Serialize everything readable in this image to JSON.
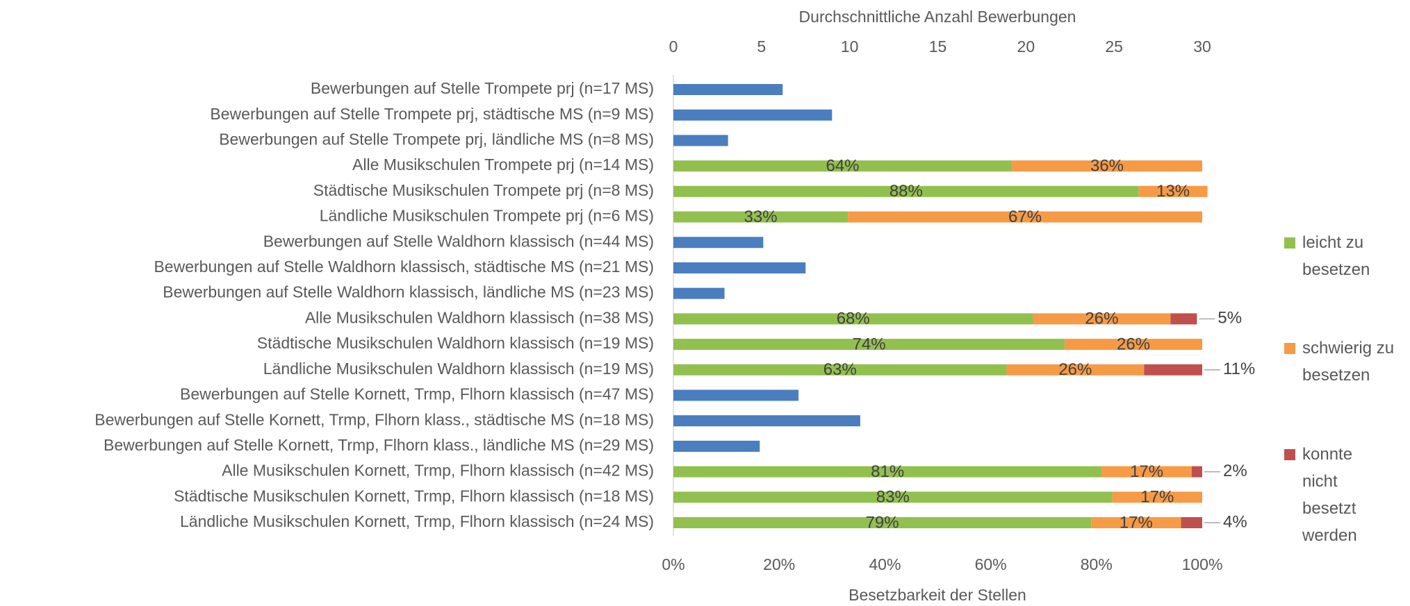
{
  "chart_data": {
    "type": "bar",
    "orientation": "horizontal",
    "stacked": true,
    "x2label": "Durchschnittliche Anzahl Bewerbungen",
    "xlabel": "Besetzbarkeit der Stellen",
    "categories": [
      "Bewerbungen auf Stelle Trompete prj (n=17 MS)",
      "Bewerbungen auf Stelle Trompete prj, städtische MS (n=9 MS)",
      "Bewerbungen auf Stelle Trompete prj, ländliche MS (n=8 MS)",
      "Alle Musikschulen Trompete prj (n=14 MS)",
      "Städtische Musikschulen Trompete prj (n=8 MS)",
      "Ländliche Musikschulen Trompete prj (n=6 MS)",
      "Bewerbungen auf Stelle Waldhorn klassisch (n=44 MS)",
      "Bewerbungen auf Stelle Waldhorn klassisch, städtische MS (n=21 MS)",
      "Bewerbungen auf Stelle Waldhorn klassisch, ländliche MS (n=23 MS)",
      "Alle Musikschulen Waldhorn klassisch (n=38 MS)",
      "Städtische Musikschulen Waldhorn klassisch (n=19 MS)",
      "Ländliche Musikschulen Waldhorn klassisch (n=19 MS)",
      "Bewerbungen auf Stelle Kornett, Trmp, Flhorn klassisch (n=47 MS)",
      "Bewerbungen auf Stelle Kornett, Trmp, Flhorn klass., städtische MS (n=18 MS)",
      "Bewerbungen auf Stelle Kornett, Trmp, Flhorn klass., ländliche MS (n=29 MS)",
      "Alle Musikschulen Kornett, Trmp, Flhorn klassisch (n=42 MS)",
      "Städtische Musikschulen Kornett, Trmp, Flhorn klassisch (n=18 MS)",
      "Ländliche Musikschulen Kornett, Trmp, Flhorn klassisch (n=24 MS)"
    ],
    "series": [
      {
        "color": "#4a7ebf",
        "axis": "x2",
        "values": [
          6.2,
          9.0,
          3.1,
          null,
          null,
          null,
          5.1,
          7.5,
          2.9,
          null,
          null,
          null,
          7.1,
          10.6,
          4.9,
          null,
          null,
          null
        ]
      },
      {
        "name": "leicht zu besetzen",
        "color": "#92c04f",
        "values": [
          null,
          null,
          null,
          64,
          88,
          33,
          null,
          null,
          null,
          68,
          74,
          63,
          null,
          null,
          null,
          81,
          83,
          79
        ],
        "value_labels": [
          null,
          null,
          null,
          "64%",
          "88%",
          "33%",
          null,
          null,
          null,
          "68%",
          "74%",
          "63%",
          null,
          null,
          null,
          "81%",
          "83%",
          "79%"
        ]
      },
      {
        "name": "schwierig zu besetzen",
        "color": "#f79a46",
        "values": [
          null,
          null,
          null,
          36,
          13,
          67,
          null,
          null,
          null,
          26,
          26,
          26,
          null,
          null,
          null,
          17,
          17,
          17
        ],
        "value_labels": [
          null,
          null,
          null,
          "36%",
          "13%",
          "67%",
          null,
          null,
          null,
          "26%",
          "26%",
          "26%",
          null,
          null,
          null,
          "17%",
          "17%",
          "17%"
        ]
      },
      {
        "name": "konnte nicht besetzt werden",
        "color": "#c0504d",
        "values": [
          null,
          null,
          null,
          null,
          null,
          null,
          null,
          null,
          null,
          5,
          null,
          11,
          null,
          null,
          null,
          2,
          null,
          4
        ],
        "value_labels": [
          null,
          null,
          null,
          null,
          null,
          null,
          null,
          null,
          null,
          "5%",
          null,
          "11%",
          null,
          null,
          null,
          "2%",
          null,
          "4%"
        ]
      }
    ],
    "xlim": [
      0,
      100
    ],
    "xticks": [
      {
        "value": 0,
        "label": "0%"
      },
      {
        "value": 20,
        "label": "20%"
      },
      {
        "value": 40,
        "label": "40%"
      },
      {
        "value": 60,
        "label": "60%"
      },
      {
        "value": 80,
        "label": "80%"
      },
      {
        "value": 100,
        "label": "100%"
      }
    ],
    "x2lim": [
      0,
      30
    ],
    "x2ticks": [
      0,
      5,
      10,
      15,
      20,
      25,
      30
    ],
    "legend": "right",
    "grid": false
  }
}
